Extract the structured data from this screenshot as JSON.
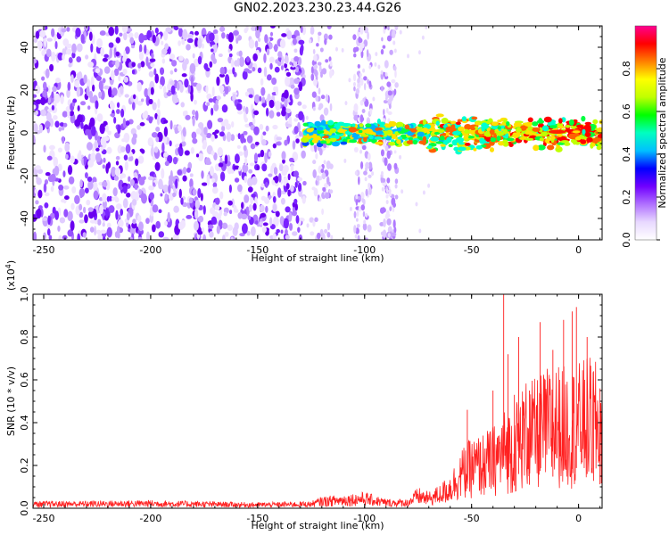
{
  "figure": {
    "title": "GN02.2023.230.23.44.G26"
  },
  "chart_data": [
    {
      "type": "heatmap",
      "xlabel": "Height of straight line (km)",
      "ylabel": "Frequency (Hz)",
      "xlim": [
        -255,
        11
      ],
      "ylim": [
        -50,
        50
      ],
      "xticks": [
        -250,
        -200,
        -150,
        -100,
        -50,
        0
      ],
      "yticks": [
        -40,
        -20,
        0,
        20,
        40
      ],
      "colorbar": {
        "label": "Normalized spectral amplitude",
        "range": [
          0,
          1
        ],
        "ticks": [
          "0.0",
          "0.2",
          "0.4",
          "0.6",
          "0.8"
        ],
        "colors": [
          "#ffffff",
          "#e8d8ff",
          "#b070ff",
          "#7000ff",
          "#0000ff",
          "#00c0ff",
          "#00ffc0",
          "#00ff00",
          "#c0ff00",
          "#ffff00",
          "#ff8000",
          "#ff0000",
          "#ff0090"
        ]
      },
      "features": {
        "noise_region_x": [
          -255,
          -128
        ],
        "signal_band_center_hz": 0,
        "signal_band_start_x": -128,
        "secondary_noise_columns_x": [
          [
            -125,
            -115
          ],
          [
            -105,
            -97
          ],
          [
            -92,
            -85
          ]
        ],
        "peak_x": -10
      }
    },
    {
      "type": "line",
      "xlabel": "Height of straight line (km)",
      "ylabel": "SNR (10 * v/v)",
      "y_multiplier": "(x10",
      "y_multiplier_exp": "4",
      "y_multiplier_close": ")",
      "xlim": [
        -255,
        11
      ],
      "ylim": [
        0,
        1.0
      ],
      "xticks": [
        -250,
        -200,
        -150,
        -100,
        -50,
        0
      ],
      "yticks": [
        "0.0",
        "0.2",
        "0.4",
        "0.6",
        "0.8",
        "1.0"
      ],
      "series": [
        {
          "color": "#ff2020",
          "envelope": [
            [
              -255,
              0.03
            ],
            [
              -200,
              0.035
            ],
            [
              -150,
              0.025
            ],
            [
              -125,
              0.03
            ],
            [
              -120,
              0.05
            ],
            [
              -110,
              0.06
            ],
            [
              -100,
              0.07
            ],
            [
              -90,
              0.04
            ],
            [
              -80,
              0.04
            ],
            [
              -75,
              0.09
            ],
            [
              -70,
              0.07
            ],
            [
              -65,
              0.1
            ],
            [
              -60,
              0.15
            ],
            [
              -55,
              0.25
            ],
            [
              -50,
              0.3
            ],
            [
              -45,
              0.32
            ],
            [
              -40,
              0.35
            ],
            [
              -35,
              0.42
            ],
            [
              -30,
              0.45
            ],
            [
              -25,
              0.55
            ],
            [
              -20,
              0.55
            ],
            [
              -15,
              0.6
            ],
            [
              -10,
              0.62
            ],
            [
              -5,
              0.6
            ],
            [
              0,
              0.62
            ],
            [
              5,
              0.65
            ],
            [
              11,
              0.6
            ]
          ],
          "spikes": [
            [
              -52,
              0.46
            ],
            [
              -40,
              0.55
            ],
            [
              -35,
              1.0
            ],
            [
              -33,
              0.72
            ],
            [
              -30,
              0.53
            ],
            [
              -28,
              0.8
            ],
            [
              -23,
              0.55
            ],
            [
              -18,
              0.87
            ],
            [
              -12,
              0.74
            ],
            [
              -7,
              0.88
            ],
            [
              -3,
              0.92
            ],
            [
              -1,
              0.94
            ],
            [
              4,
              0.8
            ],
            [
              7,
              0.64
            ],
            [
              10,
              0.56
            ]
          ]
        }
      ]
    }
  ]
}
